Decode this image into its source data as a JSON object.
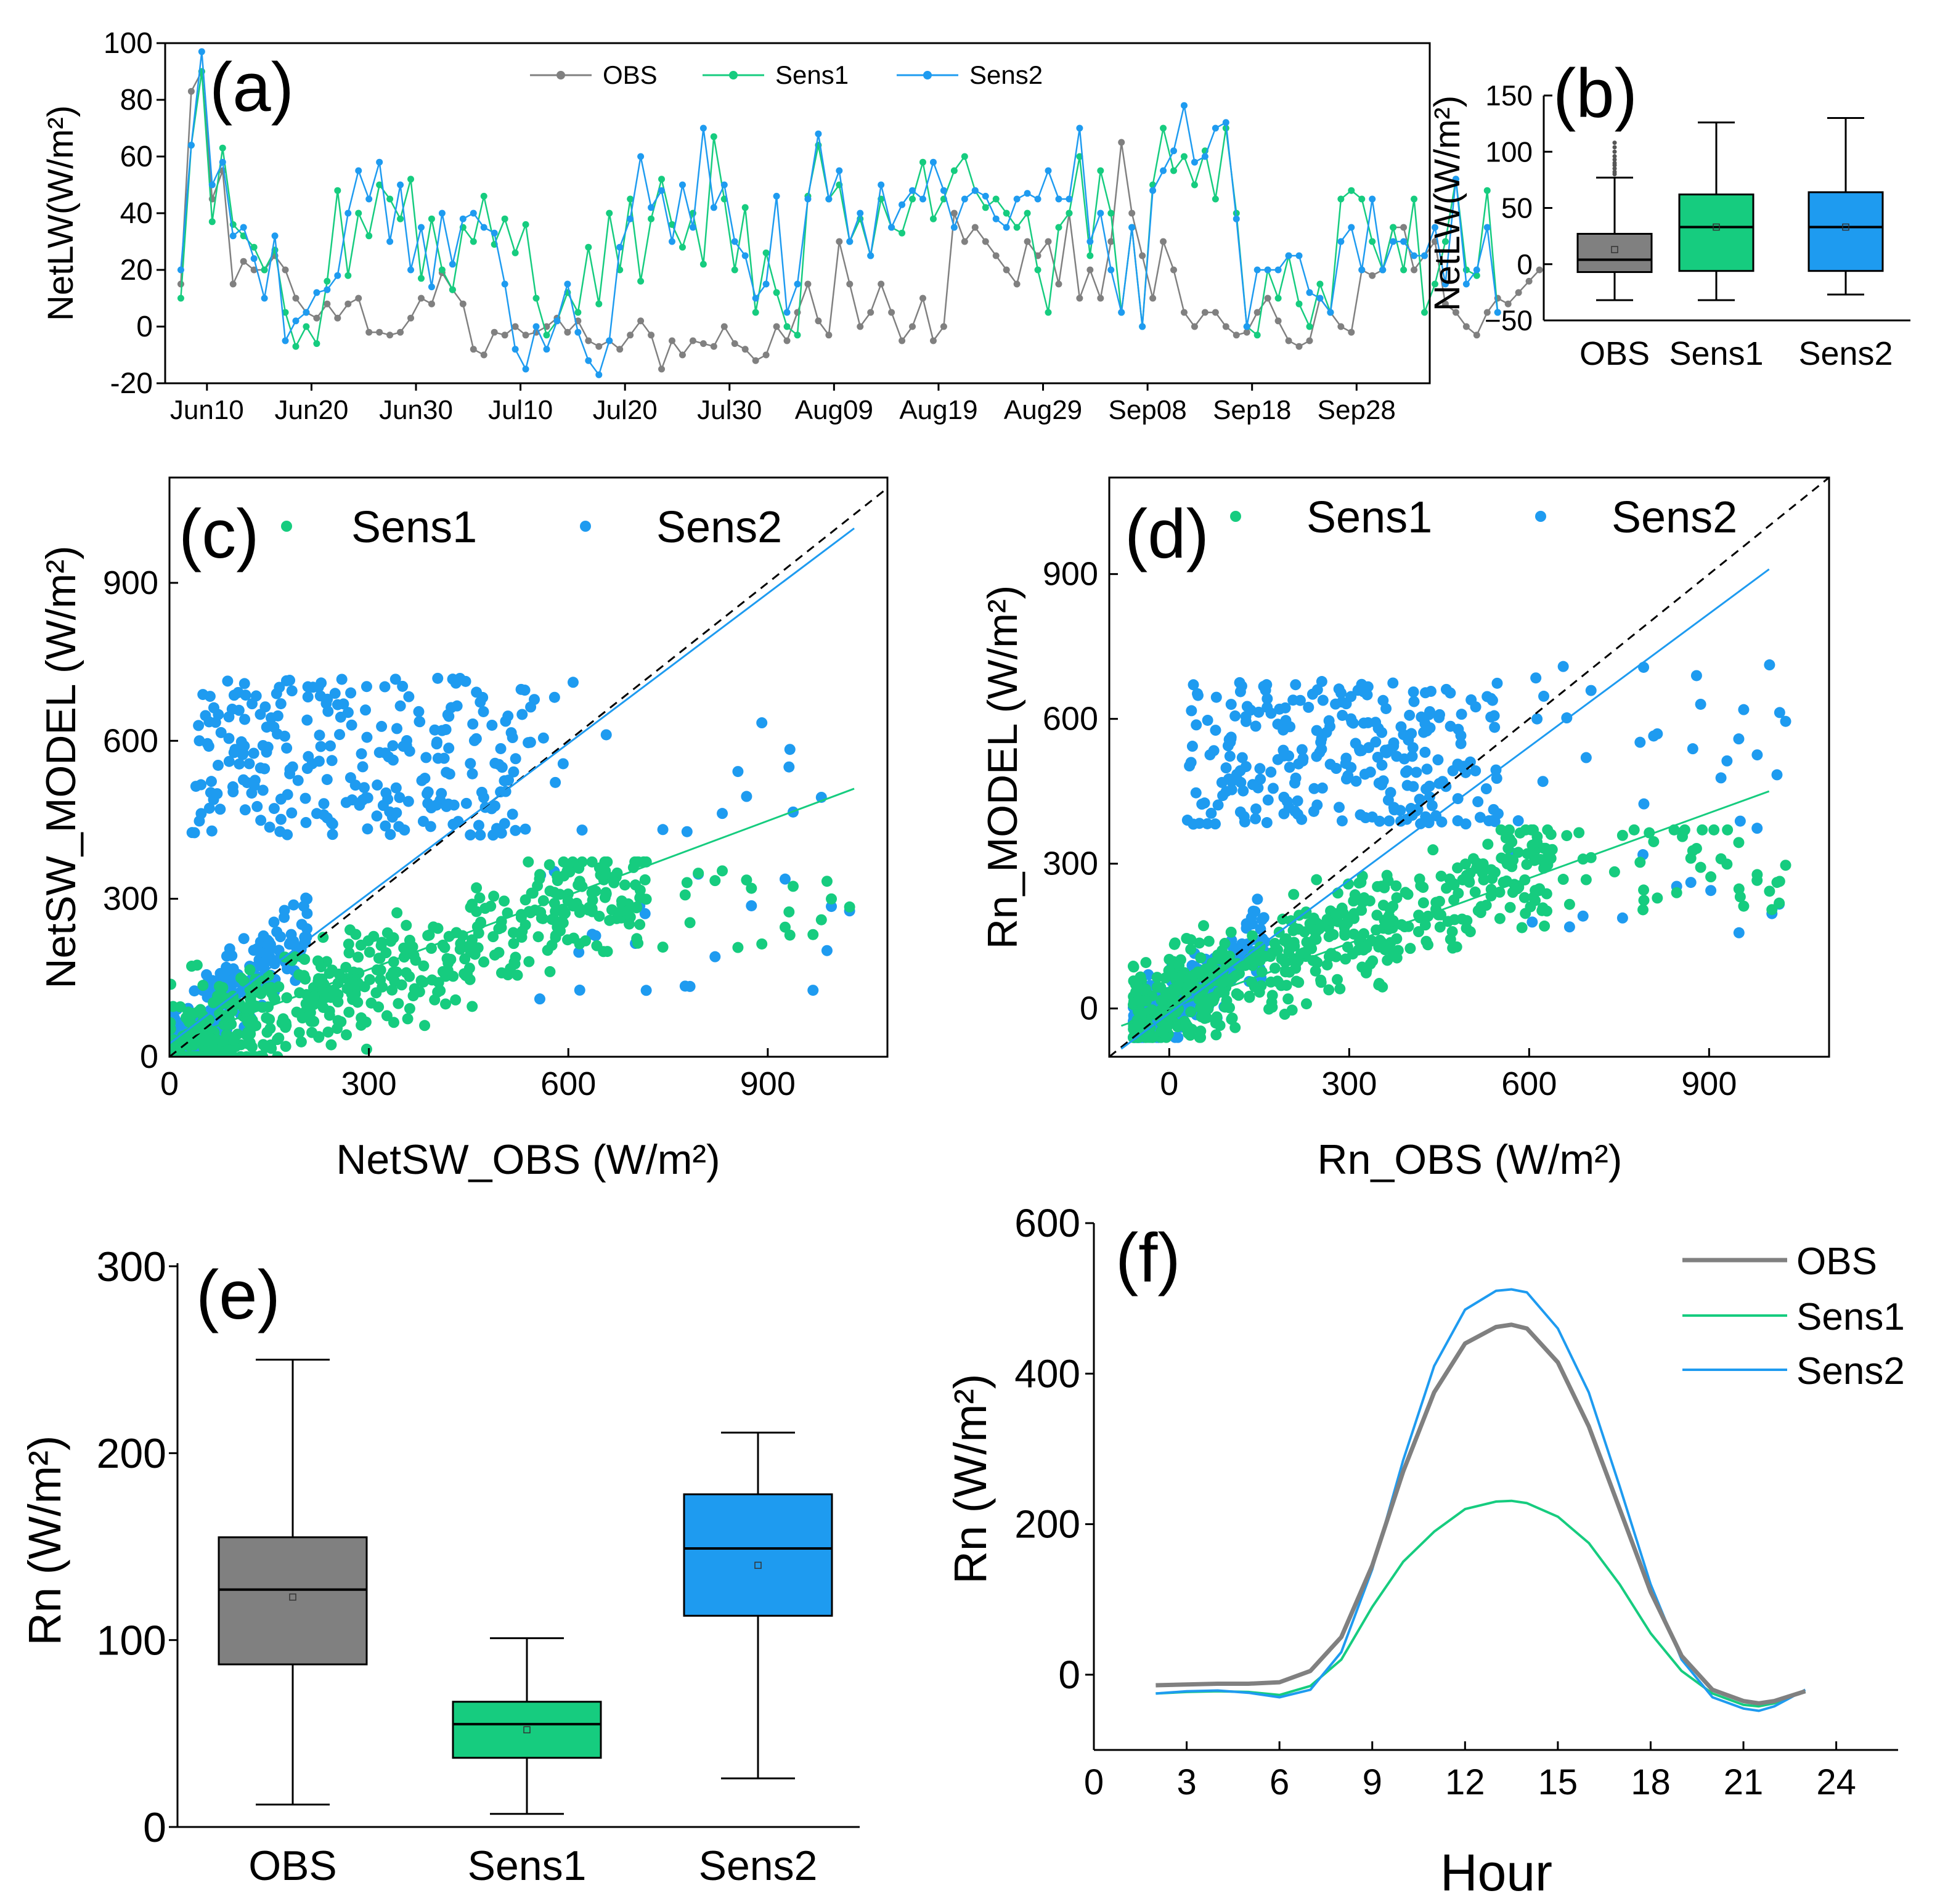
{
  "colors": {
    "obs": "#808080",
    "sens1": "#16CC7F",
    "sens2": "#1E9BF0",
    "identity": "#000000"
  },
  "chart_data": [
    {
      "id": "a",
      "panel_label": "(a)",
      "type": "line",
      "ylabel": "NetLW(W/m²)",
      "ylim": [
        -20,
        100
      ],
      "yticks": [
        "-20",
        "0",
        "20",
        "40",
        "60",
        "80",
        "100"
      ],
      "xlim": [
        0,
        121
      ],
      "xticks": [
        {
          "day": 4,
          "label": "Jun10"
        },
        {
          "day": 14,
          "label": "Jun20"
        },
        {
          "day": 24,
          "label": "Jun30"
        },
        {
          "day": 34,
          "label": "Jul10"
        },
        {
          "day": 44,
          "label": "Jul20"
        },
        {
          "day": 54,
          "label": "Jul30"
        },
        {
          "day": 64,
          "label": "Aug09"
        },
        {
          "day": 74,
          "label": "Aug19"
        },
        {
          "day": 84,
          "label": "Aug29"
        },
        {
          "day": 94,
          "label": "Sep08"
        },
        {
          "day": 104,
          "label": "Sep18"
        },
        {
          "day": 114,
          "label": "Sep28"
        }
      ],
      "legend": [
        "OBS",
        "Sens1",
        "Sens2"
      ],
      "series": [
        {
          "name": "OBS",
          "values": [
            15,
            83,
            90,
            45,
            55,
            15,
            23,
            20,
            20,
            25,
            20,
            10,
            5,
            3,
            8,
            3,
            8,
            10,
            -2,
            -2,
            -3,
            -2,
            3,
            10,
            8,
            19,
            13,
            8,
            -8,
            -10,
            -2,
            -3,
            0,
            -3,
            -2,
            0,
            3,
            -2,
            2,
            -5,
            -7,
            -5,
            -8,
            -3,
            2,
            -3,
            -15,
            -5,
            -10,
            -5,
            -6,
            -7,
            0,
            -6,
            -8,
            -12,
            -10,
            0,
            -5,
            5,
            15,
            2,
            -3,
            30,
            15,
            0,
            5,
            15,
            5,
            -5,
            0,
            10,
            -5,
            0,
            40,
            30,
            35,
            30,
            25,
            20,
            15,
            30,
            25,
            30,
            15,
            40,
            10,
            20,
            10,
            30,
            65,
            40,
            25,
            10,
            30,
            20,
            5,
            0,
            5,
            5,
            0,
            -3,
            -2,
            5,
            10,
            2,
            -5,
            -7,
            -5,
            10,
            5,
            0,
            -2,
            20,
            18,
            20,
            35,
            35,
            20,
            25,
            30,
            8,
            5,
            0,
            -3,
            5,
            10,
            8,
            12,
            16,
            20
          ]
        },
        {
          "name": "Sens1",
          "values": [
            10,
            64,
            90,
            37,
            63,
            36,
            32,
            28,
            20,
            27,
            5,
            -7,
            0,
            -6,
            16,
            48,
            18,
            40,
            32,
            50,
            45,
            38,
            52,
            17,
            38,
            20,
            13,
            35,
            30,
            46,
            29,
            38,
            26,
            36,
            10,
            -3,
            2,
            12,
            5,
            28,
            8,
            40,
            20,
            45,
            16,
            38,
            52,
            36,
            28,
            40,
            22,
            67,
            45,
            20,
            42,
            5,
            26,
            12,
            0,
            -3,
            46,
            64,
            45,
            50,
            30,
            38,
            25,
            45,
            35,
            33,
            45,
            58,
            38,
            45,
            55,
            60,
            48,
            42,
            45,
            40,
            35,
            40,
            20,
            5,
            35,
            40,
            60,
            25,
            55,
            40,
            5,
            35,
            0,
            50,
            70,
            55,
            60,
            50,
            62,
            45,
            70,
            40,
            0,
            -3,
            20,
            10,
            25,
            8,
            0,
            15,
            5,
            45,
            48,
            45,
            30,
            20,
            35,
            20,
            45,
            5,
            15,
            30,
            52,
            20,
            18,
            48,
            5
          ]
        },
        {
          "name": "Sens2",
          "values": [
            20,
            64,
            97,
            50,
            58,
            32,
            35,
            24,
            10,
            32,
            -5,
            2,
            5,
            12,
            13,
            18,
            40,
            55,
            45,
            58,
            30,
            50,
            20,
            35,
            14,
            40,
            22,
            38,
            40,
            35,
            33,
            15,
            -8,
            -15,
            0,
            -8,
            2,
            15,
            -2,
            -12,
            -17,
            -5,
            28,
            38,
            60,
            42,
            48,
            30,
            50,
            35,
            70,
            42,
            50,
            30,
            25,
            10,
            15,
            46,
            5,
            15,
            45,
            68,
            45,
            55,
            30,
            40,
            25,
            50,
            35,
            43,
            48,
            45,
            58,
            48,
            35,
            45,
            48,
            46,
            38,
            35,
            45,
            47,
            45,
            55,
            45,
            45,
            70,
            30,
            40,
            20,
            5,
            35,
            0,
            48,
            55,
            62,
            78,
            58,
            60,
            70,
            72,
            38,
            0,
            20,
            20,
            20,
            25,
            25,
            12,
            10,
            5,
            30,
            35,
            20,
            45,
            20,
            30,
            30,
            25,
            25,
            35,
            15,
            52,
            15,
            20,
            35,
            5
          ]
        }
      ]
    },
    {
      "id": "b",
      "panel_label": "(b)",
      "type": "box",
      "ylabel": "NetLW(W/m²)",
      "ylim": [
        -50,
        150
      ],
      "yticks": [
        "−50",
        "0",
        "50",
        "100",
        "150"
      ],
      "categories": [
        "OBS",
        "Sens1",
        "Sens2"
      ],
      "boxes": [
        {
          "name": "OBS",
          "min": -32,
          "q1": -7,
          "median": 4,
          "q3": 27,
          "max": 77,
          "mean": 13,
          "outliers": [
            80,
            82,
            85,
            88,
            90,
            93,
            96,
            100,
            104,
            108
          ]
        },
        {
          "name": "Sens1",
          "min": -32,
          "q1": -6,
          "median": 33,
          "q3": 62,
          "max": 126,
          "mean": 33,
          "outliers": []
        },
        {
          "name": "Sens2",
          "min": -27,
          "q1": -6,
          "median": 33,
          "q3": 64,
          "max": 130,
          "mean": 33,
          "outliers": []
        }
      ]
    },
    {
      "id": "c",
      "panel_label": "(c)",
      "type": "scatter",
      "xlabel": "NetSW_OBS (W/m²)",
      "ylabel": "NetSW_MODEL (W/m²)",
      "xlim": [
        0,
        1080
      ],
      "ylim": [
        0,
        1100
      ],
      "xticks": [
        "0",
        "300",
        "600",
        "900"
      ],
      "yticks": [
        "0",
        "300",
        "600",
        "900"
      ],
      "legend": [
        "Sens1",
        "Sens2"
      ],
      "fits": [
        {
          "name": "Sens1",
          "slope": 0.47,
          "intercept": 25
        },
        {
          "name": "Sens2",
          "slope": 0.95,
          "intercept": 25
        }
      ]
    },
    {
      "id": "d",
      "panel_label": "(d)",
      "type": "scatter",
      "xlabel": "Rn_OBS (W/m²)",
      "ylabel": "Rn_MODEL (W/m²)",
      "xlim": [
        -100,
        1100
      ],
      "ylim": [
        -100,
        1100
      ],
      "xticks": [
        "0",
        "300",
        "600",
        "900"
      ],
      "yticks": [
        "0",
        "300",
        "600",
        "900"
      ],
      "legend": [
        "Sens1",
        "Sens2"
      ],
      "fits": [
        {
          "name": "Sens1",
          "slope": 0.45,
          "intercept": 0
        },
        {
          "name": "Sens2",
          "slope": 0.92,
          "intercept": -10
        }
      ]
    },
    {
      "id": "e",
      "panel_label": "(e)",
      "type": "box",
      "ylabel": "Rn (W/m²)",
      "ylim": [
        0,
        300
      ],
      "yticks": [
        "0",
        "100",
        "200",
        "300"
      ],
      "categories": [
        "OBS",
        "Sens1",
        "Sens2"
      ],
      "boxes": [
        {
          "name": "OBS",
          "min": 12,
          "q1": 87,
          "median": 127,
          "q3": 155,
          "max": 250,
          "mean": 123
        },
        {
          "name": "Sens1",
          "min": 7,
          "q1": 37,
          "median": 55,
          "q3": 67,
          "max": 101,
          "mean": 52
        },
        {
          "name": "Sens2",
          "min": 26,
          "q1": 113,
          "median": 149,
          "q3": 178,
          "max": 211,
          "mean": 140
        }
      ]
    },
    {
      "id": "f",
      "panel_label": "(f)",
      "type": "line",
      "xlabel": "Hour",
      "ylabel": "Rn (W/m²)",
      "xlim": [
        0,
        26
      ],
      "ylim": [
        -100,
        600
      ],
      "xticks": [
        "0",
        "3",
        "6",
        "9",
        "12",
        "15",
        "18",
        "21",
        "24"
      ],
      "yticks": [
        "0",
        "200",
        "400",
        "600"
      ],
      "legend": [
        "OBS",
        "Sens1",
        "Sens2"
      ],
      "x": [
        2,
        3,
        4,
        5,
        6,
        7,
        8,
        9,
        10,
        11,
        12,
        13,
        13.5,
        14,
        15,
        16,
        17,
        18,
        19,
        20,
        21,
        21.5,
        22,
        23
      ],
      "series": [
        {
          "name": "OBS",
          "values": [
            -14,
            -13,
            -12,
            -12,
            -10,
            5,
            50,
            145,
            270,
            375,
            440,
            462,
            465,
            460,
            415,
            330,
            220,
            110,
            25,
            -20,
            -35,
            -38,
            -35,
            -22
          ]
        },
        {
          "name": "Sens1",
          "values": [
            -25,
            -23,
            -22,
            -23,
            -27,
            -15,
            20,
            90,
            150,
            190,
            220,
            230,
            231,
            228,
            210,
            175,
            120,
            55,
            5,
            -25,
            -40,
            -42,
            -38,
            -22
          ]
        },
        {
          "name": "Sens2",
          "values": [
            -25,
            -22,
            -21,
            -24,
            -30,
            -20,
            30,
            140,
            285,
            410,
            485,
            510,
            512,
            508,
            460,
            375,
            250,
            120,
            20,
            -30,
            -45,
            -48,
            -42,
            -20
          ]
        }
      ]
    }
  ]
}
